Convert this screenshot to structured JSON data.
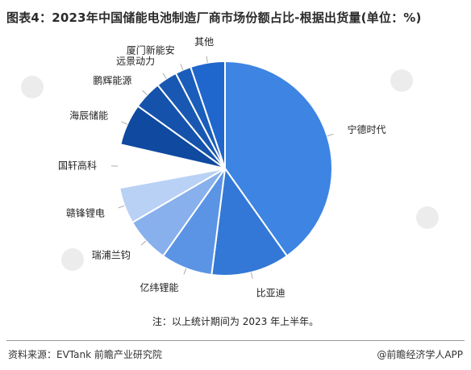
{
  "title": "图表4：2023年中国储能电池制造厂商市场份额占比-根据出货量(单位：%)",
  "note": "注：以上统计期间为 2023 年上半年。",
  "footer": {
    "source": "资料来源：EVTank 前瞻产业研究院",
    "brand": "@前瞻经济学人APP"
  },
  "chart_data": {
    "type": "pie",
    "title": "图表4：2023年中国储能电池制造厂商市场份额占比-根据出货量(单位：%)",
    "start": "12 o'clock, clockwise",
    "slices": [
      {
        "label": "宁德时代",
        "value": 40.2,
        "color": "#3d84e3"
      },
      {
        "label": "比亚迪",
        "value": 11.8,
        "color": "#3378d6"
      },
      {
        "label": "亿纬锂能",
        "value": 7.8,
        "color": "#5b94e4"
      },
      {
        "label": "瑞浦兰钧",
        "value": 6.8,
        "color": "#87b0ec"
      },
      {
        "label": "赣锋锂电",
        "value": 5.5,
        "color": "#b9d1f5"
      },
      {
        "label": "国轩高科",
        "value": 6.5,
        "color": "#ffffff"
      },
      {
        "label": "海辰储能",
        "value": 6.3,
        "color": "#0f4aa0"
      },
      {
        "label": "鹏辉能源",
        "value": 4.3,
        "color": "#1552ac"
      },
      {
        "label": "远景动力",
        "value": 3.2,
        "color": "#1858b2"
      },
      {
        "label": "厦门新能安",
        "value": 2.4,
        "color": "#1a5dba"
      },
      {
        "label": "其他",
        "value": 5.2,
        "color": "#1f66cd"
      }
    ]
  }
}
